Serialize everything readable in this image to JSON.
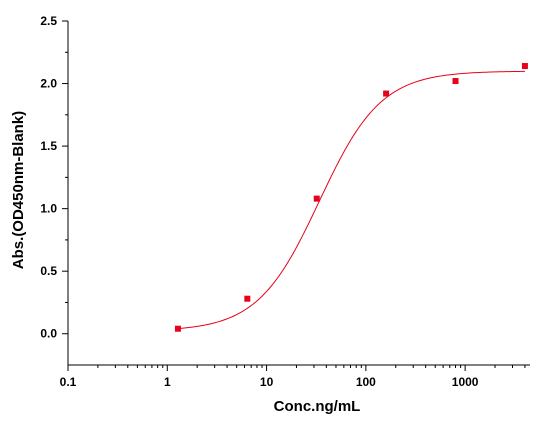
{
  "chart_data": {
    "type": "scatter",
    "title": "",
    "xlabel": "Conc.ng/mL",
    "ylabel": "Abs.(OD450nm-Blank)",
    "x_scale": "log",
    "xlim": [
      0.1,
      4500
    ],
    "ylim": [
      -0.25,
      2.5
    ],
    "x_ticks": [
      0.1,
      1,
      10,
      100,
      1000
    ],
    "x_tick_labels": [
      "0.1",
      "1",
      "10",
      "100",
      "1000"
    ],
    "y_ticks": [
      0.0,
      0.5,
      1.0,
      1.5,
      2.0,
      2.5
    ],
    "y_tick_labels": [
      "0.0",
      "0.5",
      "1.0",
      "1.5",
      "2.0",
      "2.5"
    ],
    "grid": false,
    "legend": "none",
    "series": [
      {
        "marker": "square",
        "color": "#e8001c",
        "x": [
          1.28,
          6.4,
          32,
          160,
          800,
          4000
        ],
        "y": [
          0.04,
          0.28,
          1.08,
          1.92,
          2.02,
          2.14
        ]
      }
    ],
    "fit_curve": {
      "type": "4PL sigmoid",
      "color": "#e8001c",
      "bottom": 0.02,
      "top": 2.1,
      "ec50": 34,
      "hill": 1.4,
      "x_range": [
        1.28,
        4000
      ]
    }
  }
}
